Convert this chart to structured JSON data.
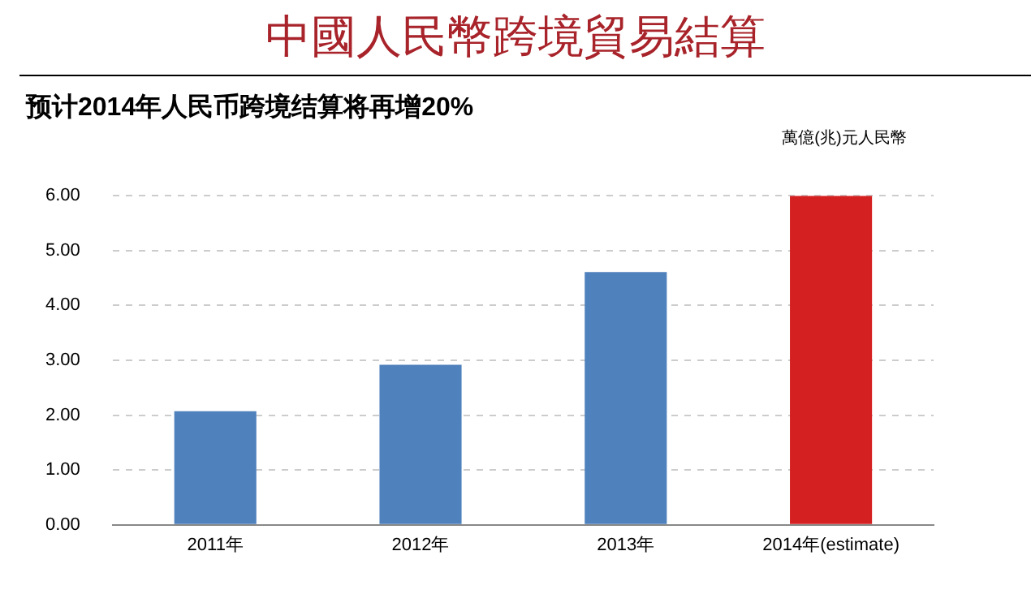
{
  "chart_data": {
    "type": "bar",
    "title": "中國人民幣跨境貿易結算",
    "subtitle": "预计2014年人民币跨境结算将再增20%",
    "ylabel": "萬億(兆)元人民幣",
    "categories": [
      "2011年",
      "2012年",
      "2013年",
      "2014年(estimate)"
    ],
    "values": [
      2.07,
      2.92,
      4.61,
      6.0
    ],
    "colors": [
      "#4f81bd",
      "#4f81bd",
      "#4f81bd",
      "#d42020"
    ],
    "ylim": [
      0,
      6
    ],
    "yticks": [
      {
        "value": 0,
        "label": "0.00"
      },
      {
        "value": 1,
        "label": "1.00"
      },
      {
        "value": 2,
        "label": "2.00"
      },
      {
        "value": 3,
        "label": "3.00"
      },
      {
        "value": 4,
        "label": "4.00"
      },
      {
        "value": 5,
        "label": "5.00"
      },
      {
        "value": 6,
        "label": "6.00"
      }
    ],
    "grid": "y",
    "legend": false
  }
}
